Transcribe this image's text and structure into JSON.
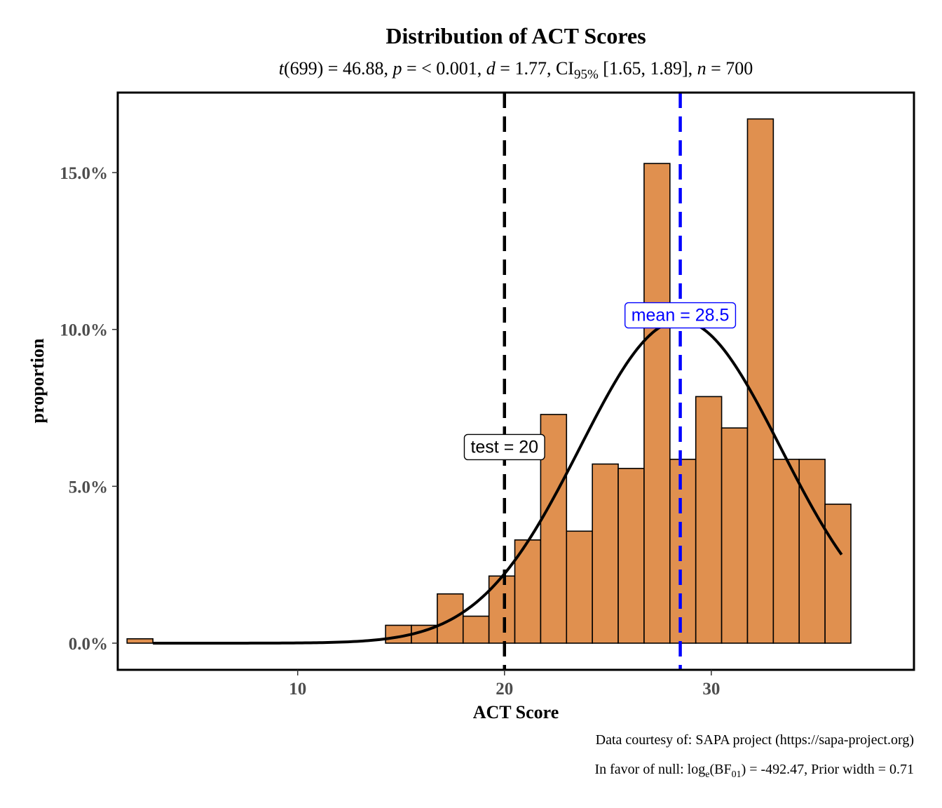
{
  "chart_data": {
    "type": "histogram",
    "title": "Distribution of ACT Scores",
    "subtitle": {
      "stat": "t",
      "df": "(699)",
      "statistic": " = 46.88, ",
      "p_symbol": "p",
      "p_value": " = < 0.001, ",
      "effect_symbol": "d",
      "effect_value": " = 1.77, CI",
      "ci_level": "95%",
      "ci_value": " [1.65, 1.89], ",
      "n_symbol": "n",
      "n_value": " = 700"
    },
    "xlabel": "ACT Score",
    "ylabel": "proportion",
    "xlim": [
      1.3,
      39.8
    ],
    "ylim": [
      -0.0085,
      0.1755
    ],
    "x_ticks": [
      10,
      20,
      30
    ],
    "x_tick_labels": [
      "10",
      "20",
      "30"
    ],
    "y_ticks": [
      0.0,
      0.05,
      0.1,
      0.15
    ],
    "y_tick_labels": [
      "0.0%",
      "5.0%",
      "10.0%",
      "15.0%"
    ],
    "grid": false,
    "bin_width": 1.25,
    "bins": [
      {
        "x0": 1.75,
        "x1": 3.0,
        "value": 0.0014
      },
      {
        "x0": 14.25,
        "x1": 15.5,
        "value": 0.0057
      },
      {
        "x0": 15.5,
        "x1": 16.75,
        "value": 0.0057
      },
      {
        "x0": 16.75,
        "x1": 18.0,
        "value": 0.0157
      },
      {
        "x0": 18.0,
        "x1": 19.25,
        "value": 0.0086
      },
      {
        "x0": 19.25,
        "x1": 20.5,
        "value": 0.0214
      },
      {
        "x0": 20.5,
        "x1": 21.75,
        "value": 0.0329
      },
      {
        "x0": 21.75,
        "x1": 23.0,
        "value": 0.0729
      },
      {
        "x0": 23.0,
        "x1": 24.25,
        "value": 0.0357
      },
      {
        "x0": 24.25,
        "x1": 25.5,
        "value": 0.0571
      },
      {
        "x0": 25.5,
        "x1": 26.75,
        "value": 0.0557
      },
      {
        "x0": 26.75,
        "x1": 28.0,
        "value": 0.1529
      },
      {
        "x0": 28.0,
        "x1": 29.25,
        "value": 0.0586
      },
      {
        "x0": 29.25,
        "x1": 30.5,
        "value": 0.0786
      },
      {
        "x0": 30.5,
        "x1": 31.75,
        "value": 0.0686
      },
      {
        "x0": 31.75,
        "x1": 33.0,
        "value": 0.1671
      },
      {
        "x0": 33.0,
        "x1": 34.25,
        "value": 0.0586
      },
      {
        "x0": 34.25,
        "x1": 35.5,
        "value": 0.0586
      },
      {
        "x0": 35.5,
        "x1": 36.75,
        "value": 0.0443
      }
    ],
    "bar_fill": "#e0904f",
    "bar_stroke": "#000000",
    "normal_curve": {
      "mean": 28.5,
      "sd": 4.85,
      "bin_width": 1.25,
      "x_range": [
        3.0,
        36.3
      ],
      "color": "#000000"
    },
    "reference_lines": [
      {
        "name": "test",
        "x": 20,
        "color": "#000000",
        "label_text": "test",
        "label_value": "20"
      },
      {
        "name": "mean",
        "x": 28.5,
        "color": "#0000ff",
        "label_text": "mean",
        "label_value": "28.5"
      }
    ],
    "caption_line1": "Data courtesy of: SAPA project (https://sapa-project.org)",
    "caption_line2": {
      "prefix": "In favor of null: log",
      "log_sub": "e",
      "paren_open": "(BF",
      "bf_sub": "01",
      "suffix": ") = -492.47, Prior width = 0.71"
    }
  }
}
